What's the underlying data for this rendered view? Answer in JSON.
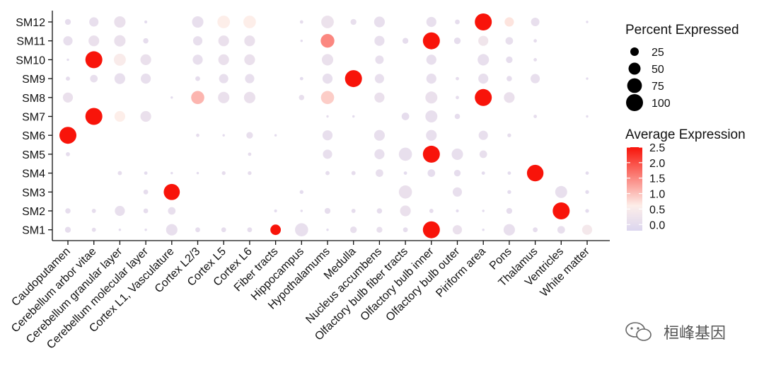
{
  "chart_data": {
    "type": "dotplot",
    "x_categories": [
      "Caudoputamen",
      "Cerebellum arbor vitae",
      "Cerebellum granular layer",
      "Cerebellum molecular layer",
      "Cortex L1, Vasculature",
      "Cortex L2/3",
      "Cortex L5",
      "Cortex L6",
      "Fiber tracts",
      "Hippocampus",
      "Hypothalamums",
      "Medulla",
      "Nucleus accumbens",
      "Olfactory bulb fiber tracts",
      "Olfactory bulb inner",
      "Olfactory bulb outer",
      "Piriform area",
      "Pons",
      "Thalamus",
      "Ventricles",
      "White matter"
    ],
    "y_categories": [
      "SM1",
      "SM2",
      "SM3",
      "SM4",
      "SM5",
      "SM6",
      "SM7",
      "SM8",
      "SM9",
      "SM10",
      "SM11",
      "SM12"
    ],
    "size_variable": "Percent Expressed",
    "color_variable": "Average Expression",
    "percent_expressed": [
      [
        12,
        6,
        2,
        2,
        45,
        8,
        8,
        8,
        38,
        60,
        2,
        15,
        12,
        8,
        100,
        30,
        2,
        45,
        8,
        20,
        35
      ],
      [
        10,
        6,
        35,
        8,
        20,
        0,
        0,
        0,
        3,
        2,
        12,
        6,
        10,
        40,
        6,
        3,
        2,
        12,
        0,
        100,
        5
      ],
      [
        0,
        0,
        0,
        8,
        90,
        0,
        0,
        0,
        0,
        5,
        0,
        0,
        0,
        60,
        0,
        30,
        0,
        5,
        0,
        50,
        5
      ],
      [
        0,
        0,
        6,
        4,
        2,
        2,
        5,
        5,
        0,
        0,
        6,
        6,
        20,
        4,
        20,
        15,
        4,
        4,
        95,
        0,
        4
      ],
      [
        6,
        0,
        0,
        0,
        0,
        0,
        0,
        4,
        0,
        0,
        30,
        0,
        35,
        60,
        100,
        45,
        20,
        0,
        0,
        0,
        0
      ],
      [
        100,
        0,
        0,
        0,
        0,
        4,
        2,
        15,
        2,
        0,
        35,
        0,
        40,
        0,
        40,
        0,
        30,
        5,
        0,
        0,
        0
      ],
      [
        0,
        100,
        40,
        40,
        0,
        0,
        0,
        0,
        0,
        0,
        2,
        2,
        0,
        20,
        50,
        10,
        0,
        0,
        4,
        0,
        2
      ],
      [
        35,
        0,
        0,
        0,
        2,
        60,
        45,
        45,
        0,
        10,
        60,
        0,
        35,
        0,
        50,
        4,
        100,
        40,
        0,
        0,
        0
      ],
      [
        6,
        20,
        40,
        35,
        0,
        8,
        30,
        30,
        0,
        4,
        35,
        100,
        30,
        0,
        35,
        4,
        35,
        10,
        30,
        0,
        2
      ],
      [
        2,
        100,
        50,
        40,
        0,
        35,
        40,
        40,
        0,
        0,
        45,
        0,
        25,
        0,
        35,
        0,
        45,
        15,
        4,
        0,
        0
      ],
      [
        30,
        40,
        45,
        10,
        0,
        30,
        40,
        40,
        0,
        2,
        65,
        0,
        35,
        12,
        100,
        15,
        35,
        20,
        4,
        0,
        0
      ],
      [
        12,
        30,
        45,
        3,
        0,
        45,
        55,
        55,
        0,
        4,
        55,
        12,
        40,
        0,
        35,
        8,
        100,
        30,
        25,
        0,
        2
      ]
    ],
    "average_expression": [
      [
        0.05,
        0.05,
        0,
        0,
        0.1,
        0.05,
        0.05,
        0.05,
        2.5,
        0.1,
        0,
        0.1,
        0.1,
        0.05,
        2.5,
        0.15,
        0,
        0.1,
        0.05,
        0.1,
        0.4
      ],
      [
        0.05,
        0.05,
        0.1,
        0.05,
        0.1,
        0,
        0,
        0,
        0,
        0,
        0.05,
        0.05,
        0.05,
        0.15,
        0.05,
        0,
        0,
        0.05,
        0,
        2.5,
        0
      ],
      [
        0,
        0,
        0,
        0.05,
        2.5,
        0,
        0,
        0,
        0,
        0,
        0,
        0,
        0,
        0.15,
        0,
        0.1,
        0,
        0,
        0,
        0.1,
        0
      ],
      [
        0,
        0,
        0.05,
        0,
        0,
        0,
        0.05,
        0.05,
        0,
        0,
        0.05,
        0.05,
        0.1,
        0,
        0.05,
        0.05,
        0,
        0,
        2.5,
        0,
        0
      ],
      [
        0.05,
        0,
        0,
        0,
        0,
        0,
        0,
        0.05,
        0,
        0,
        0.1,
        0,
        0.1,
        0.1,
        2.5,
        0.1,
        0.1,
        0,
        0,
        0,
        0
      ],
      [
        2.5,
        0,
        0,
        0,
        0,
        0.05,
        0,
        0.1,
        0,
        0,
        0.1,
        0,
        0.1,
        0,
        0.1,
        0,
        0.1,
        0.05,
        0,
        0,
        0
      ],
      [
        0,
        2.5,
        0.6,
        0.15,
        0,
        0,
        0,
        0,
        0,
        0,
        0.05,
        0,
        0,
        0.05,
        0.1,
        0.05,
        0,
        0,
        0.05,
        0,
        0
      ],
      [
        0.15,
        0,
        0,
        0,
        0,
        1.1,
        0.15,
        0.15,
        0,
        0.1,
        0.9,
        0,
        0.15,
        0,
        0.15,
        0.05,
        2.5,
        0.15,
        0,
        0,
        0
      ],
      [
        0.05,
        0.1,
        0.1,
        0.1,
        0,
        0.05,
        0.1,
        0.1,
        0,
        0,
        0.1,
        2.5,
        0.1,
        0,
        0.1,
        0.05,
        0.1,
        0.05,
        0.1,
        0,
        0
      ],
      [
        0,
        2.5,
        0.5,
        0.15,
        0,
        0.1,
        0.15,
        0.15,
        0,
        0,
        0.15,
        0,
        0.1,
        0,
        0.1,
        0,
        0.1,
        0.05,
        0.05,
        0,
        0
      ],
      [
        0.1,
        0.15,
        0.15,
        0.05,
        0,
        0.1,
        0.15,
        0.15,
        0,
        0,
        1.5,
        0,
        0.1,
        0.05,
        2.5,
        0.05,
        0.3,
        0.1,
        0.05,
        0,
        0
      ],
      [
        0.05,
        0.1,
        0.15,
        0,
        0,
        0.1,
        0.6,
        0.6,
        0,
        0.05,
        0.2,
        0.1,
        0.1,
        0,
        0.1,
        0.05,
        2.5,
        0.7,
        0.1,
        0,
        0
      ]
    ],
    "size_legend": {
      "title": "Percent Expressed",
      "breaks": [
        25,
        50,
        75,
        100
      ],
      "labels": [
        "25",
        "50",
        "75",
        "100"
      ]
    },
    "color_legend": {
      "title": "Average Expression",
      "min": -0.2,
      "max": 2.5,
      "ticks": [
        0,
        0.5,
        1,
        1.5,
        2,
        2.5
      ],
      "labels": [
        "0.0",
        "0.5",
        "1.0",
        "1.5",
        "2.0",
        "2.5"
      ],
      "low_color": "#dcd6ef",
      "mid_color": "#fdeee9",
      "high_color": "#f8140a"
    }
  },
  "watermark": {
    "text": "桓峰基因",
    "icon": "wechat-icon"
  }
}
